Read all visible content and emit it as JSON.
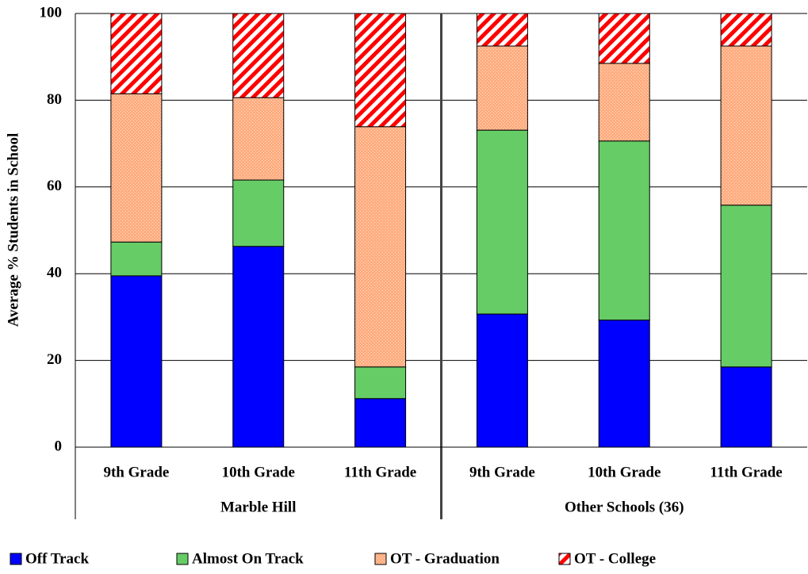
{
  "chart_data": {
    "type": "stacked-bar",
    "ylabel": "Average % Students in School",
    "groups": [
      {
        "name": "Marble Hill",
        "categories": [
          "9th Grade",
          "10th Grade",
          "11th Grade"
        ]
      },
      {
        "name": "Other Schools (36)",
        "categories": [
          "9th Grade",
          "10th Grade",
          "11th Grade"
        ]
      }
    ],
    "series": [
      {
        "name": "Off Track",
        "color": "#0000ff",
        "pattern": "solid",
        "values": [
          39.5,
          46.3,
          11.2,
          30.7,
          29.3,
          18.5
        ]
      },
      {
        "name": "Almost On Track",
        "color": "#66cc66",
        "pattern": "solid",
        "values": [
          7.8,
          15.3,
          7.3,
          42.4,
          41.3,
          37.3
        ]
      },
      {
        "name": "OT - Graduation",
        "color": "#ffad80",
        "pattern": "dots",
        "values": [
          34.2,
          19.0,
          55.4,
          19.4,
          17.9,
          36.7
        ]
      },
      {
        "name": "OT - College",
        "color": "#ff0000",
        "pattern": "stripes",
        "values": [
          18.5,
          19.4,
          26.1,
          7.5,
          11.5,
          7.5
        ]
      }
    ],
    "ylim": [
      0,
      100
    ],
    "yticks": [
      0,
      20,
      40,
      60,
      80,
      100
    ],
    "grid": true
  }
}
